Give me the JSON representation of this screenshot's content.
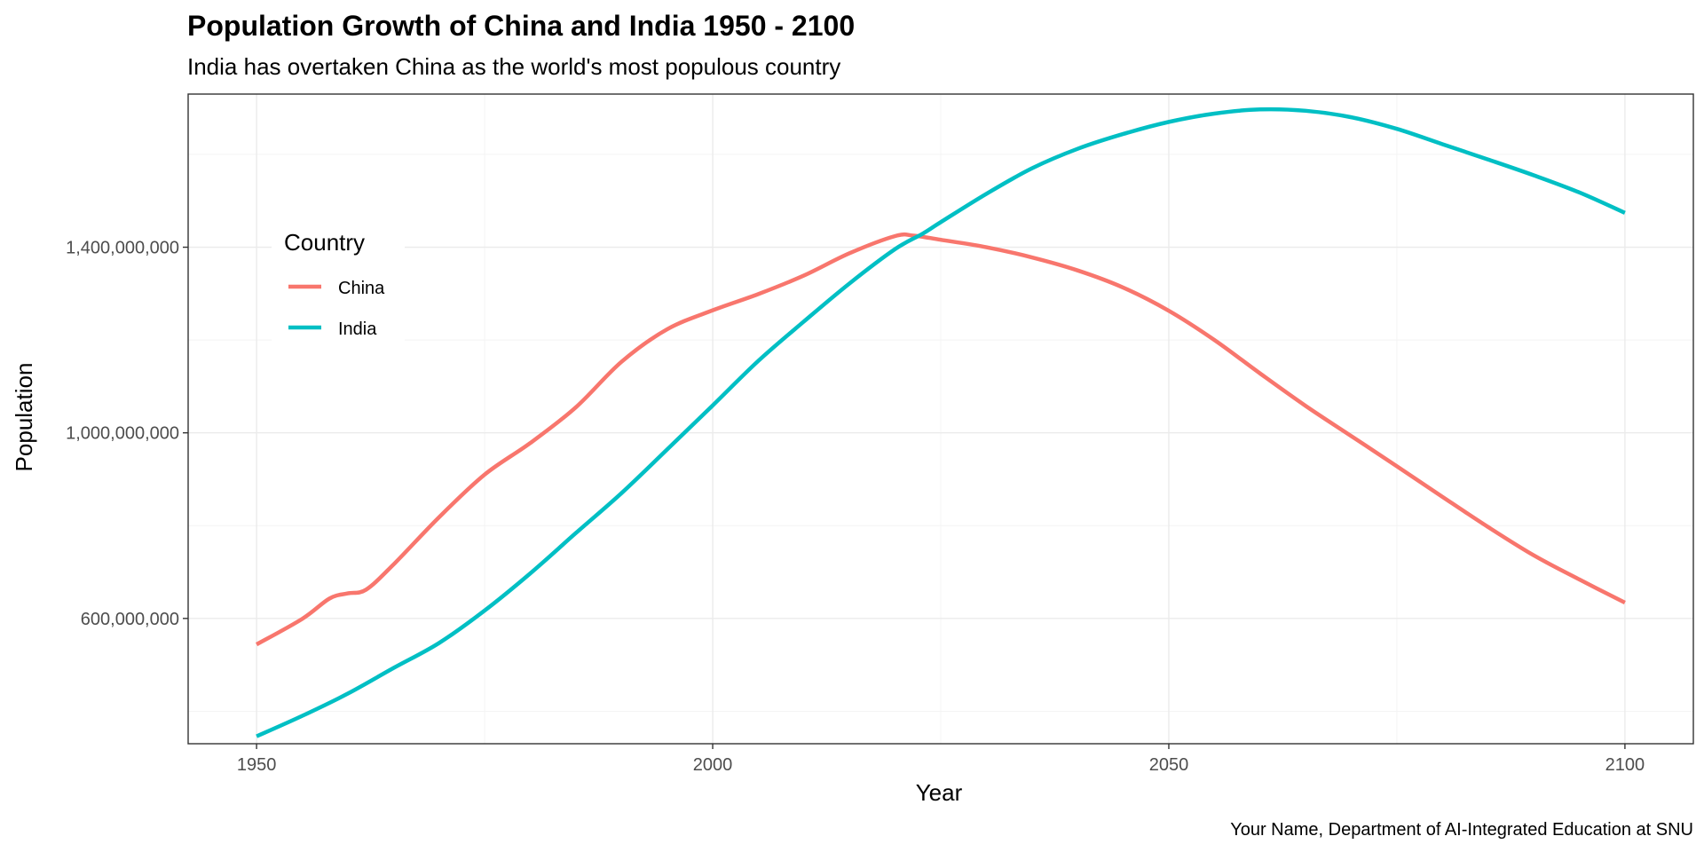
{
  "chart_data": {
    "type": "line",
    "title": "Population Growth of China and India 1950 - 2100",
    "subtitle": "India has overtaken China as the world's most populous country",
    "xlabel": "Year",
    "ylabel": "Population",
    "caption": "Your Name, Department of AI-Integrated Education at SNU",
    "xlim": [
      1942.5,
      2107.5
    ],
    "ylim": [
      330000000,
      1730000000
    ],
    "x_ticks": [
      1950,
      2000,
      2050,
      2100
    ],
    "x_tick_labels": [
      "1950",
      "2000",
      "2050",
      "2100"
    ],
    "y_ticks": [
      600000000,
      1000000000,
      1400000000
    ],
    "y_tick_labels": [
      "600,000,000",
      "1,000,000,000",
      "1,400,000,000"
    ],
    "grid": true,
    "legend": {
      "title": "Country",
      "placement": "inside-left"
    },
    "series": [
      {
        "name": "China",
        "color": "#F8766D",
        "x": [
          1950,
          1955,
          1958,
          1960,
          1962,
          1965,
          1970,
          1975,
          1980,
          1985,
          1990,
          1995,
          2000,
          2005,
          2010,
          2015,
          2020,
          2022,
          2025,
          2030,
          2035,
          2040,
          2045,
          2050,
          2055,
          2060,
          2065,
          2070,
          2075,
          2080,
          2085,
          2090,
          2095,
          2100
        ],
        "values": [
          544000000,
          599000000,
          643000000,
          654000000,
          662000000,
          716000000,
          818000000,
          910000000,
          978000000,
          1055000000,
          1153000000,
          1223000000,
          1264000000,
          1299000000,
          1339000000,
          1387000000,
          1424000000,
          1425000000,
          1416000000,
          1400000000,
          1378000000,
          1350000000,
          1313000000,
          1263000000,
          1200000000,
          1128000000,
          1058000000,
          993000000,
          928000000,
          862000000,
          797000000,
          736000000,
          684000000,
          634000000
        ]
      },
      {
        "name": "India",
        "color": "#00BFC4",
        "x": [
          1950,
          1955,
          1960,
          1965,
          1970,
          1975,
          1980,
          1985,
          1990,
          1995,
          2000,
          2005,
          2010,
          2015,
          2020,
          2023,
          2025,
          2030,
          2035,
          2040,
          2045,
          2050,
          2055,
          2060,
          2065,
          2070,
          2075,
          2080,
          2085,
          2090,
          2095,
          2100
        ],
        "values": [
          346000000,
          390000000,
          438000000,
          493000000,
          547000000,
          617000000,
          697000000,
          784000000,
          870000000,
          964000000,
          1059000000,
          1155000000,
          1240000000,
          1322000000,
          1396000000,
          1429000000,
          1454000000,
          1515000000,
          1570000000,
          1612000000,
          1644000000,
          1670000000,
          1688000000,
          1697000000,
          1694000000,
          1680000000,
          1655000000,
          1622000000,
          1589000000,
          1555000000,
          1518000000,
          1474000000
        ]
      }
    ]
  }
}
